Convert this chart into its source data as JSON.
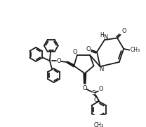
{
  "background": "#ffffff",
  "line_color": "#1a1a1a",
  "line_width": 1.3,
  "figsize": [
    2.08,
    1.82
  ],
  "dpi": 100,
  "xlim": [
    0,
    208
  ],
  "ylim": [
    0,
    182
  ]
}
